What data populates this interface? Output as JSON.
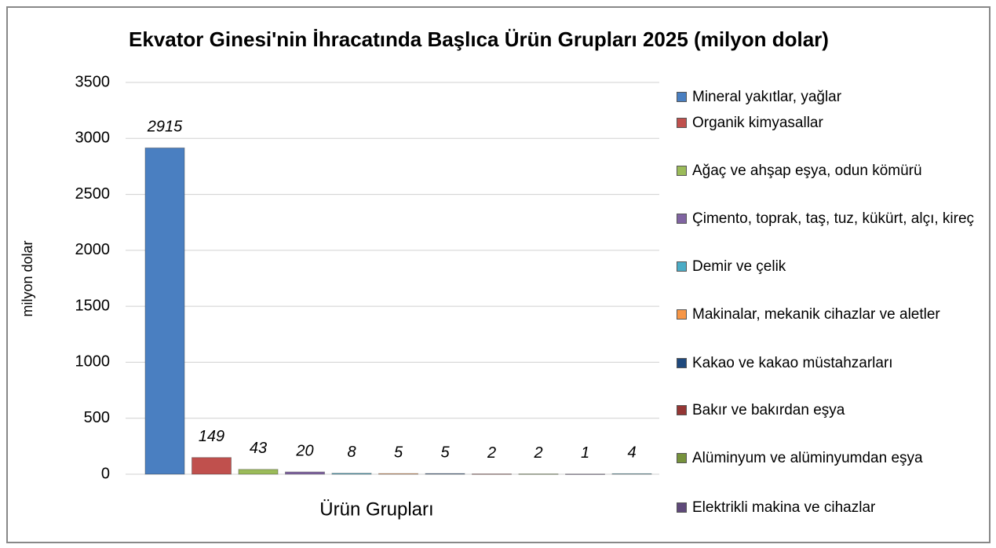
{
  "chart_data": {
    "type": "bar",
    "title": "Ekvator Ginesi'nin İhracatında Başlıca Ürün Grupları 2025 (milyon dolar)",
    "x_label": "Ürün Grupları",
    "y_label": "milyon dolar",
    "ylim": [
      0,
      3500
    ],
    "yticks": [
      0,
      500,
      1000,
      1500,
      2000,
      2500,
      3000,
      3500
    ],
    "grid": true,
    "legend": "right",
    "series": [
      {
        "name": "Mineral yakıtlar, yağlar",
        "color": "#4a7fc1",
        "values": [
          2915
        ]
      },
      {
        "name": "Organik kimyasallar",
        "color": "#c0504d",
        "values": [
          149
        ]
      },
      {
        "name": "Ağaç ve ahşap eşya, odun kömürü",
        "color": "#9bbb59",
        "values": [
          43
        ]
      },
      {
        "name": "Çimento, toprak, taş, tuz, kükürt, alçı, kireç",
        "color": "#8064a2",
        "values": [
          20
        ]
      },
      {
        "name": "Demir ve çelik",
        "color": "#4bacc6",
        "values": [
          8
        ]
      },
      {
        "name": "Makinalar, mekanik cihazlar ve aletler",
        "color": "#f79646",
        "values": [
          5
        ]
      },
      {
        "name": "Kakao ve kakao müstahzarları",
        "color": "#1f497d",
        "values": [
          5
        ]
      },
      {
        "name": "Bakır ve bakırdan eşya",
        "color": "#943634",
        "values": [
          2
        ]
      },
      {
        "name": "Alüminyum ve alüminyumdan eşya",
        "color": "#76923c",
        "values": [
          2
        ]
      },
      {
        "name": "Elektrikli makina ve cihazlar",
        "color": "#5f497a",
        "values": [
          1
        ]
      },
      {
        "name": null,
        "color": "#31859c",
        "values": [
          4
        ]
      }
    ]
  }
}
